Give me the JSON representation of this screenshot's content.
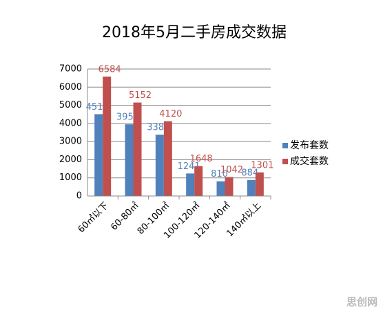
{
  "chart_data": {
    "type": "bar",
    "title": "2018年5月二手房成交数据",
    "categories": [
      "60㎡以下",
      "60-80㎡",
      "80-100㎡",
      "100-120㎡",
      "120-140㎡",
      "140㎡以上"
    ],
    "series": [
      {
        "name": "发布套数",
        "color": "#4f81bd",
        "values": [
          4511,
          3950,
          3380,
          1241,
          810,
          884
        ]
      },
      {
        "name": "成交套数",
        "color": "#c0504d",
        "values": [
          6584,
          5152,
          4120,
          1648,
          1042,
          1301
        ]
      }
    ],
    "ylim": [
      0,
      7000
    ],
    "yticks": [
      0,
      1000,
      2000,
      3000,
      4000,
      5000,
      6000,
      7000
    ],
    "grid": true,
    "legend": "right",
    "watermark": "思创网"
  }
}
